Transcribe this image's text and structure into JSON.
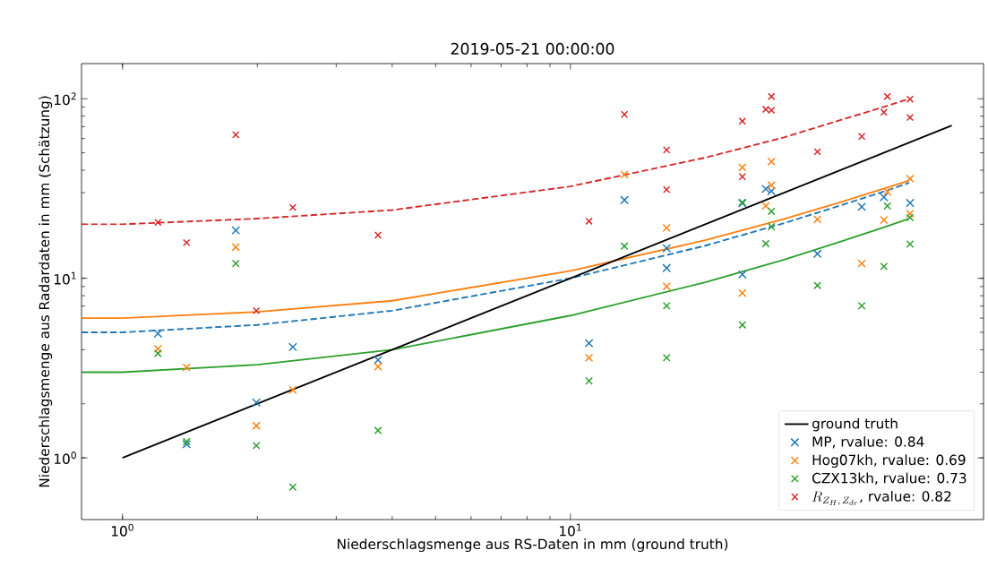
{
  "chart_data": {
    "type": "scatter",
    "title": "2019-05-21 00:00:00",
    "xlabel": "Niederschlagsmenge aus RS-Daten in mm (ground truth)",
    "ylabel": "Niederschlagsmenge aus Radardaten in mm (Schätzung)",
    "log": "xy",
    "xlim": [
      0.81,
      83.6
    ],
    "ylim": [
      0.453,
      157
    ],
    "xticks": [
      {
        "value": 1,
        "label": "10$^{0}$"
      },
      {
        "value": 10,
        "label": "10$^{1}$"
      }
    ],
    "yticks": [
      {
        "value": 1,
        "label": "10$^{0}$"
      },
      {
        "value": 10,
        "label": "10$^{1}$"
      },
      {
        "value": 100,
        "label": "10$^{2}$"
      }
    ],
    "legend": "bottom right",
    "series": [
      {
        "name": "ground truth",
        "type": "line",
        "color": "#000000",
        "marker": "none",
        "line_style": "solid",
        "x": [
          1,
          71
        ],
        "values": [
          1,
          71
        ]
      },
      {
        "name": "MP, rvalue: 0.84",
        "type": "scatter",
        "color": "#1f77b4",
        "marker": "cross",
        "x": [
          1.2,
          1.39,
          1.79,
          1.99,
          2.4,
          3.72,
          11.0,
          13.2,
          16.4,
          16.4,
          24.2,
          24.2,
          27.3,
          28.1,
          35.6,
          44.7,
          50.1,
          57.3
        ],
        "values": [
          4.92,
          1.19,
          18.5,
          2.03,
          4.14,
          3.51,
          4.35,
          27.3,
          14.7,
          11.4,
          26.2,
          10.5,
          31.5,
          30.6,
          13.7,
          25.0,
          28.3,
          26.3
        ]
      },
      {
        "name": "Hog07kh, rvalue: 0.69",
        "type": "scatter",
        "color": "#ff7f0e",
        "marker": "cross",
        "x": [
          1.2,
          1.39,
          1.79,
          1.99,
          2.4,
          3.72,
          11.0,
          13.2,
          16.4,
          16.4,
          24.2,
          24.2,
          27.3,
          28.1,
          28.1,
          35.6,
          44.7,
          50.1,
          51.0,
          57.3,
          57.3
        ],
        "values": [
          4.05,
          3.19,
          14.9,
          1.51,
          2.39,
          3.22,
          3.61,
          37.8,
          19.1,
          9.01,
          41.5,
          8.28,
          25.3,
          33,
          44.7,
          21.3,
          12.1,
          21.1,
          30.3,
          35.9,
          22.9
        ]
      },
      {
        "name": "CZX13kh, rvalue: 0.73",
        "type": "scatter",
        "color": "#2ca02c",
        "marker": "cross",
        "x": [
          1.2,
          1.39,
          1.79,
          1.99,
          2.4,
          3.72,
          11.0,
          13.2,
          16.4,
          16.4,
          24.2,
          24.2,
          27.3,
          28.1,
          28.1,
          35.6,
          44.7,
          50.1,
          51.0,
          57.3,
          57.3
        ],
        "values": [
          3.82,
          1.23,
          12.1,
          1.17,
          0.687,
          1.42,
          2.68,
          15.1,
          7.03,
          3.61,
          26.5,
          5.5,
          15.6,
          23.6,
          19.4,
          9.12,
          7.03,
          11.65,
          25.3,
          21.8,
          15.5
        ]
      },
      {
        "name": "R_{Z_H,\\,Z_{dr}}\\text{, rvalue: 0.82}",
        "type": "scatter",
        "color": "#d62728",
        "marker": "cross",
        "x": [
          1.2,
          1.39,
          1.79,
          1.99,
          2.4,
          3.72,
          11.0,
          13.2,
          16.4,
          16.4,
          24.2,
          24.2,
          27.3,
          28.1,
          28.1,
          35.6,
          44.7,
          50.1,
          51.0,
          57.3,
          57.3
        ],
        "values": [
          20.5,
          15.8,
          63,
          6.6,
          24.8,
          17.4,
          20.8,
          81.8,
          51.9,
          31.2,
          75,
          36.8,
          87.3,
          86.3,
          103,
          50.7,
          61.7,
          84.1,
          103,
          99.5,
          78.7
        ]
      },
      {
        "type": "line",
        "color": "#1f77b4",
        "marker": "none",
        "line_style": "dashed",
        "x": [
          0.81,
          1,
          2,
          4,
          10,
          20,
          30,
          40,
          50,
          57
        ],
        "values": [
          5,
          5,
          5.5,
          6.6,
          10,
          15.2,
          20.3,
          25.4,
          30.4,
          34
        ]
      },
      {
        "type": "line",
        "color": "#ff7f0e",
        "marker": "none",
        "line_style": "solid",
        "x": [
          0.81,
          1,
          2,
          4,
          10,
          20,
          30,
          40,
          50,
          57
        ],
        "values": [
          6,
          6,
          6.5,
          7.5,
          11,
          16.3,
          21.4,
          26.5,
          31.6,
          35
        ]
      },
      {
        "type": "line",
        "color": "#2ca02c",
        "marker": "none",
        "line_style": "solid",
        "x": [
          0.81,
          1,
          2,
          4,
          10,
          20,
          30,
          40,
          50,
          57
        ],
        "values": [
          3,
          3,
          3.3,
          4,
          6.2,
          9.5,
          12.7,
          16,
          19.2,
          21.5
        ]
      },
      {
        "type": "line",
        "color": "#d62728",
        "marker": "none",
        "line_style": "dashed",
        "x": [
          0.81,
          1,
          2,
          4,
          10,
          20,
          30,
          40,
          50,
          57
        ],
        "values": [
          20,
          20,
          21.5,
          24,
          32.5,
          47,
          61,
          76,
          90,
          100
        ]
      }
    ]
  }
}
